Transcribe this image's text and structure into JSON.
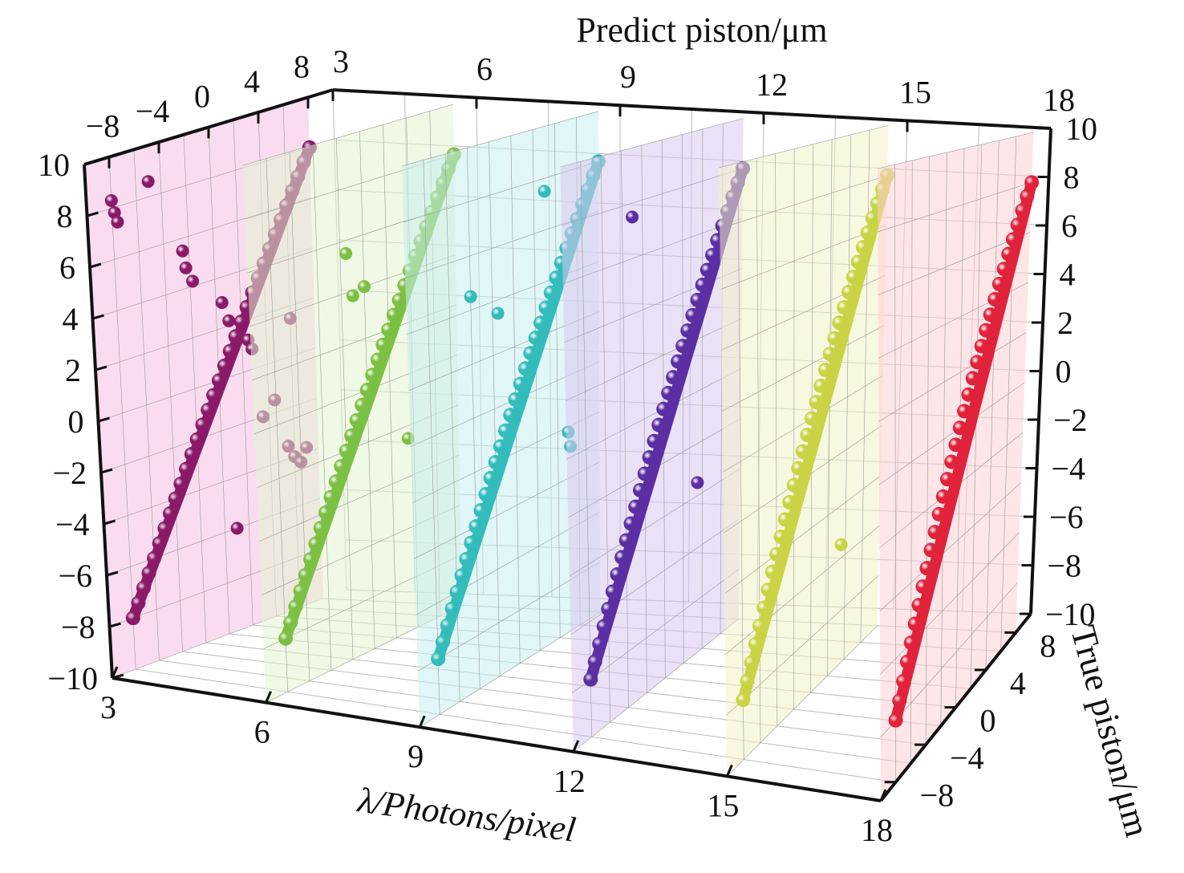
{
  "chart_data": {
    "type": "scatter",
    "dimensions": "3d",
    "title": "",
    "axes": {
      "x": {
        "label": "λ/Photons/pixel",
        "ticks": [
          "3",
          "6",
          "9",
          "12",
          "15",
          "18"
        ],
        "range": [
          3,
          18
        ]
      },
      "y": {
        "label": "True piston/μm",
        "ticks": [
          "−8",
          "−4",
          "0",
          "4",
          "8"
        ],
        "range": [
          -10,
          10
        ]
      },
      "z": {
        "label": "Predict piston/μm",
        "ticks": [
          "−10",
          "−8",
          "−6",
          "−4",
          "−2",
          "0",
          "2",
          "4",
          "6",
          "8",
          "10"
        ],
        "range": [
          -10,
          10
        ]
      }
    },
    "grid": true,
    "true_values": [
      -8,
      -7.5,
      -7,
      -6.5,
      -6,
      -5.5,
      -5,
      -4.5,
      -4,
      -3.5,
      -3,
      -2.5,
      -2,
      -1.5,
      -1,
      -0.5,
      0,
      0.5,
      1,
      1.5,
      2,
      2.5,
      3,
      3.5,
      4,
      4.5,
      5,
      5.5,
      6,
      6.5,
      7,
      7.5,
      8
    ],
    "series": [
      {
        "lambda": 3,
        "color": "#8a1a68",
        "plane_color": "#f4bfe3",
        "predicted_equals_true": true,
        "outliers": [
          [
            -8,
            8.3
          ],
          [
            -7.8,
            7.8
          ],
          [
            -7.6,
            7.4
          ],
          [
            -5,
            8.6
          ],
          [
            -2.5,
            5.5
          ],
          [
            -2.3,
            4.8
          ],
          [
            -1.8,
            4.2
          ],
          [
            0.5,
            3
          ],
          [
            1,
            2.2
          ],
          [
            2.5,
            1.2
          ],
          [
            2.8,
            0.8
          ],
          [
            3.5,
            -2
          ],
          [
            4.5,
            -1.5
          ],
          [
            5.5,
            -3.5
          ],
          [
            6,
            -4
          ],
          [
            6.5,
            -4.3
          ],
          [
            7,
            -3.8
          ],
          [
            1,
            -6
          ],
          [
            6,
            1.5
          ]
        ]
      },
      {
        "lambda": 6,
        "color": "#7cc043",
        "plane_color": "#e3f4cf",
        "predicted_equals_true": true,
        "outliers": [
          [
            -1.5,
            5.5
          ],
          [
            -1,
            3.8
          ],
          [
            0,
            4
          ],
          [
            3.5,
            -2.5
          ]
        ]
      },
      {
        "lambda": 9,
        "color": "#33bcbc",
        "plane_color": "#c9eeee",
        "predicted_equals_true": true,
        "outliers": [
          [
            3,
            7.5
          ],
          [
            -4,
            4.5
          ],
          [
            -1.5,
            3.5
          ],
          [
            5,
            -2.2
          ],
          [
            5.2,
            -2.8
          ]
        ]
      },
      {
        "lambda": 12,
        "color": "#5b2ea3",
        "plane_color": "#d8c8ee",
        "predicted_equals_true": true,
        "outliers": [
          [
            -3,
            7.5
          ],
          [
            3.5,
            -3.5
          ]
        ]
      },
      {
        "lambda": 15,
        "color": "#c9d444",
        "plane_color": "#f3f3c8",
        "predicted_equals_true": true,
        "outliers": [
          [
            3.5,
            -5.5
          ]
        ]
      },
      {
        "lambda": 18,
        "color": "#e0223a",
        "plane_color": "#fbd0d6",
        "predicted_equals_true": true,
        "outliers": []
      }
    ]
  }
}
